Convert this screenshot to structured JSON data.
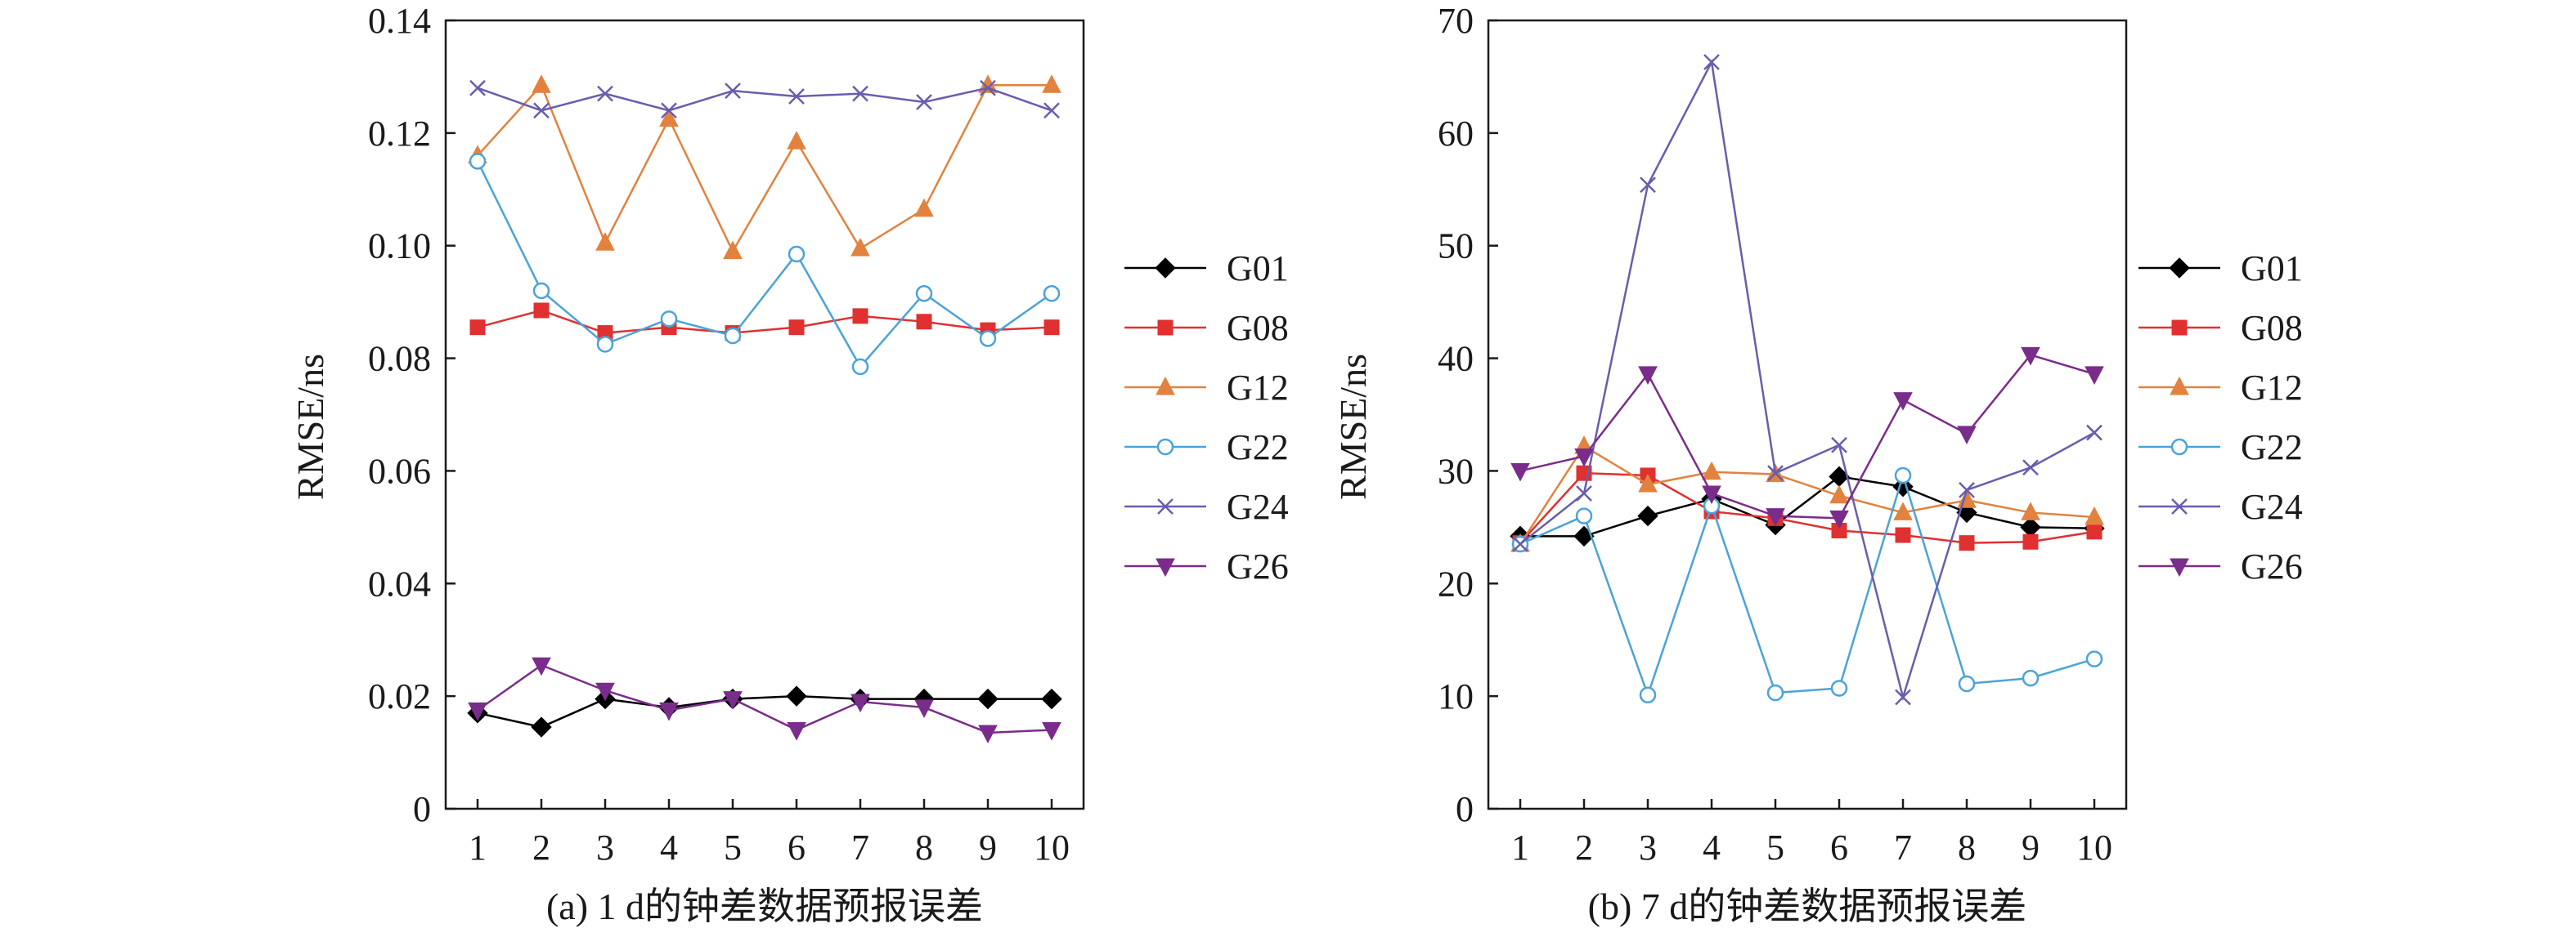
{
  "chart_data": [
    {
      "type": "line",
      "caption": "(a) 1 d的钟差数据预报误差",
      "ylabel": "RMSE/ns",
      "xlabel": "",
      "x": [
        1,
        2,
        3,
        4,
        5,
        6,
        7,
        8,
        9,
        10
      ],
      "xticks": [
        "1",
        "2",
        "3",
        "4",
        "5",
        "6",
        "7",
        "8",
        "9",
        "10"
      ],
      "ylim": [
        0,
        0.14
      ],
      "yticks": [
        "0",
        "0.02",
        "0.04",
        "0.06",
        "0.08",
        "0.10",
        "0.12",
        "0.14"
      ],
      "grid": false,
      "legend_position": "right",
      "series": [
        {
          "name": "G01",
          "color": "#000000",
          "marker": "diamond-filled",
          "values": [
            0.017,
            0.0145,
            0.0195,
            0.018,
            0.0195,
            0.02,
            0.0195,
            0.0195,
            0.0195,
            0.0195
          ]
        },
        {
          "name": "G08",
          "color": "#e03030",
          "marker": "square-filled",
          "values": [
            0.0855,
            0.0885,
            0.0845,
            0.0855,
            0.0845,
            0.0855,
            0.0875,
            0.0865,
            0.085,
            0.0855
          ]
        },
        {
          "name": "G12",
          "color": "#e2823e",
          "marker": "triangle-filled",
          "values": [
            0.116,
            0.1285,
            0.1005,
            0.1225,
            0.099,
            0.1185,
            0.0995,
            0.1065,
            0.1285,
            0.1285
          ]
        },
        {
          "name": "G22",
          "color": "#4aa3d9",
          "marker": "circle-open",
          "values": [
            0.115,
            0.092,
            0.0825,
            0.087,
            0.084,
            0.0985,
            0.0785,
            0.0915,
            0.0835,
            0.0915
          ]
        },
        {
          "name": "G24",
          "color": "#6a5cae",
          "marker": "x",
          "values": [
            0.128,
            0.124,
            0.127,
            0.124,
            0.1275,
            0.1265,
            0.127,
            0.1255,
            0.128,
            0.124
          ]
        },
        {
          "name": "G26",
          "color": "#7a2c8a",
          "marker": "triangle-down-filled",
          "values": [
            0.0175,
            0.0255,
            0.021,
            0.0175,
            0.0195,
            0.014,
            0.019,
            0.018,
            0.0135,
            0.014
          ]
        }
      ]
    },
    {
      "type": "line",
      "caption": "(b) 7 d的钟差数据预报误差",
      "ylabel": "RMSE/ns",
      "xlabel": "",
      "x": [
        1,
        2,
        3,
        4,
        5,
        6,
        7,
        8,
        9,
        10
      ],
      "xticks": [
        "1",
        "2",
        "3",
        "4",
        "5",
        "6",
        "7",
        "8",
        "9",
        "10"
      ],
      "ylim": [
        0,
        70
      ],
      "yticks": [
        "0",
        "10",
        "20",
        "30",
        "40",
        "50",
        "60",
        "70"
      ],
      "grid": false,
      "legend_position": "right",
      "series": [
        {
          "name": "G01",
          "color": "#000000",
          "marker": "diamond-filled",
          "values": [
            24.2,
            24.2,
            26.0,
            27.5,
            25.2,
            29.5,
            28.6,
            26.3,
            25.0,
            24.9
          ]
        },
        {
          "name": "G08",
          "color": "#e03030",
          "marker": "square-filled",
          "values": [
            23.6,
            29.8,
            29.6,
            26.4,
            25.8,
            24.7,
            24.3,
            23.6,
            23.7,
            24.6
          ]
        },
        {
          "name": "G12",
          "color": "#e2823e",
          "marker": "triangle-filled",
          "values": [
            23.5,
            32.2,
            28.8,
            29.9,
            29.7,
            27.8,
            26.3,
            27.4,
            26.3,
            25.9
          ]
        },
        {
          "name": "G22",
          "color": "#4aa3d9",
          "marker": "circle-open",
          "values": [
            23.5,
            26.0,
            10.1,
            26.9,
            10.3,
            10.7,
            29.6,
            11.1,
            11.6,
            13.3
          ]
        },
        {
          "name": "G24",
          "color": "#6a5cae",
          "marker": "x",
          "values": [
            23.5,
            28.0,
            55.4,
            66.3,
            29.8,
            32.3,
            9.9,
            28.3,
            30.3,
            33.4
          ]
        },
        {
          "name": "G26",
          "color": "#7a2c8a",
          "marker": "triangle-down-filled",
          "values": [
            30.0,
            31.3,
            38.6,
            28.0,
            26.0,
            25.8,
            36.3,
            33.3,
            40.3,
            38.6
          ]
        }
      ]
    }
  ]
}
